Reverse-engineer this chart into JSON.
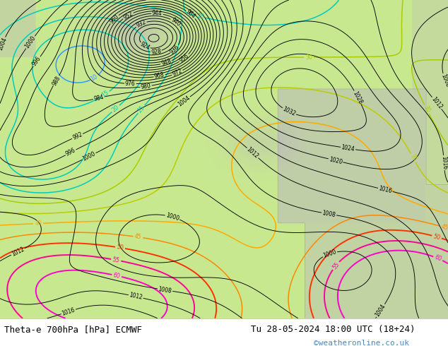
{
  "title_left": "Theta-e 700hPa [hPa] ECMWF",
  "title_right": "Tu 28-05-2024 18:00 UTC (18+24)",
  "copyright": "©weatheronline.co.uk",
  "figsize": [
    6.34,
    4.9
  ],
  "dpi": 100,
  "bottom_bar_height": 0.08,
  "title_fontsize": 9.0,
  "copyright_color": "#4488cc",
  "map_green": "#c8e890",
  "map_gray": "#b8b8b8",
  "contour_lw_black": 0.65,
  "contour_lw_theta": 1.1,
  "contour_label_fs": 5.5,
  "theta_label_fs": 5.8,
  "theta_colors": {
    "lev5": "#3399ff",
    "lev10": "#3399ff",
    "lev15": "#00cccc",
    "lev20": "#00cccc",
    "lev25": "#00cccc",
    "lev30": "#aacc00",
    "lev35": "#aacc00",
    "lev40": "#ff9900",
    "lev45": "#ff9900",
    "lev50": "#ff3300",
    "lev55": "#ff00aa",
    "lev60": "#ff00aa"
  }
}
